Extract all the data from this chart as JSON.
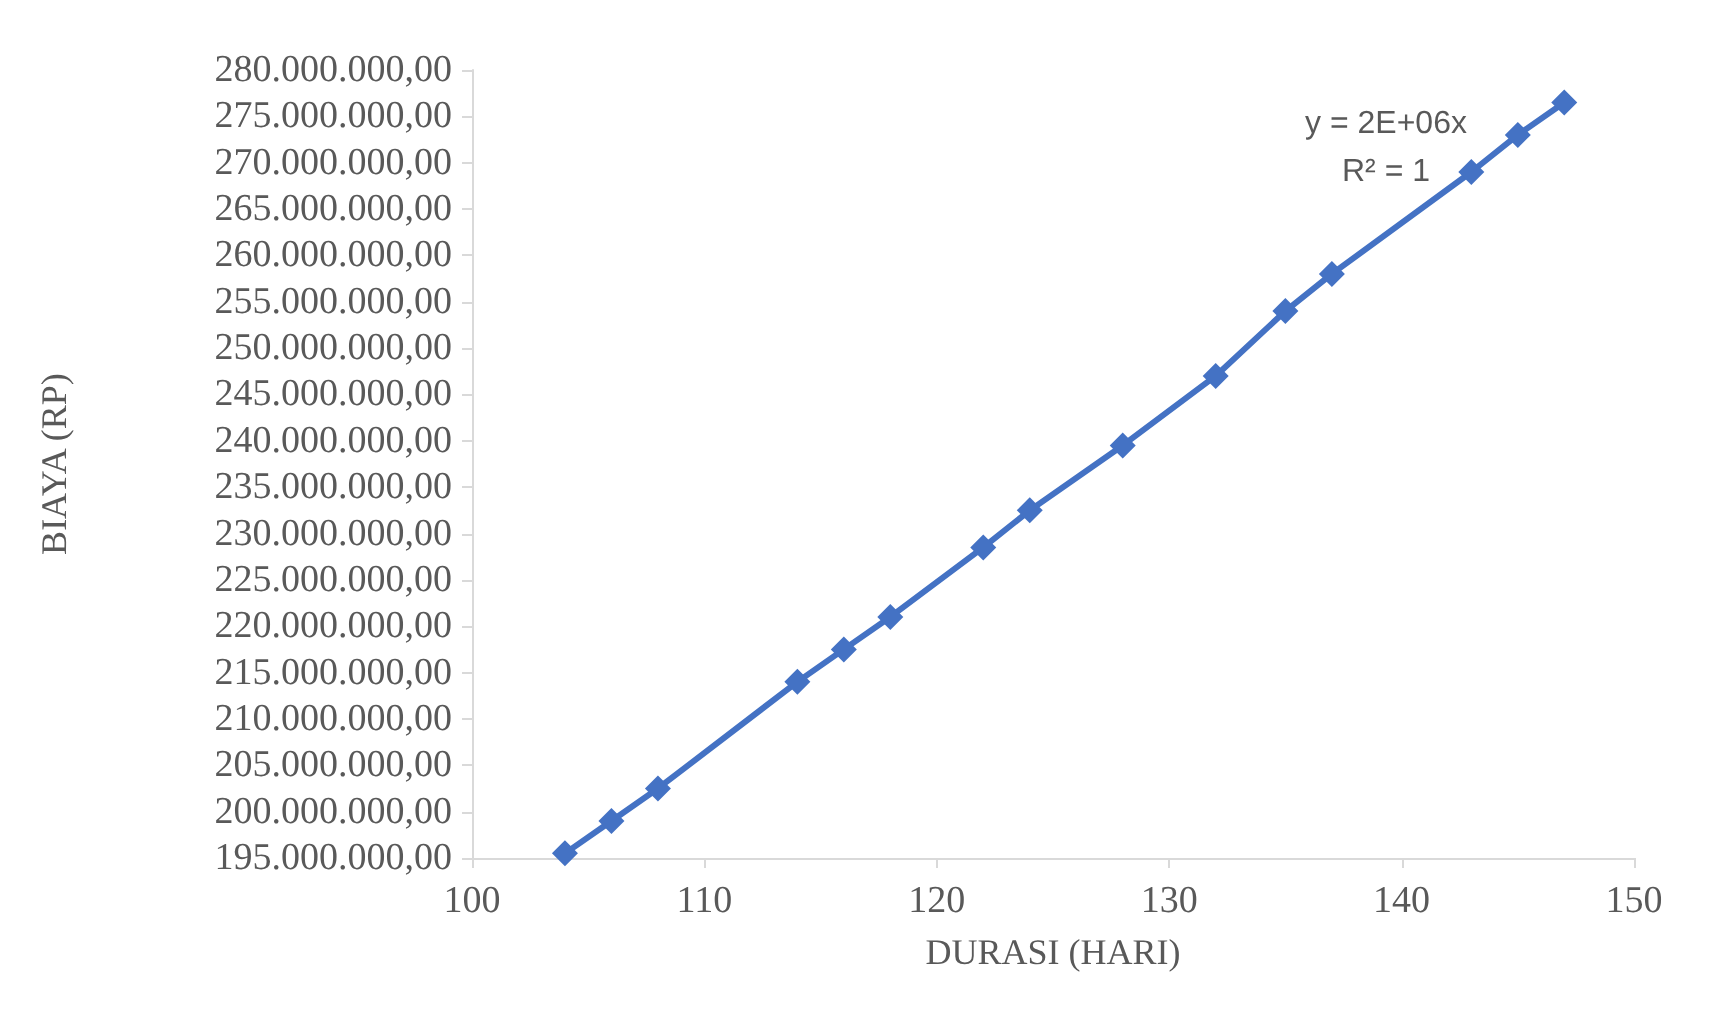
{
  "chart_data": {
    "type": "line",
    "xlabel": "DURASI (HARI)",
    "ylabel": "BIAYA (RP)",
    "annotations": [
      "y = 2E+06x",
      "R² = 1"
    ],
    "x": [
      104,
      106,
      108,
      114,
      116,
      118,
      122,
      124,
      128,
      132,
      135,
      137,
      143,
      145,
      147
    ],
    "series": [
      {
        "color": "#4472c4",
        "values": [
          195500000,
          199000000,
          202500000,
          214000000,
          217500000,
          221000000,
          228500000,
          232500000,
          239500000,
          247000000,
          254000000,
          258000000,
          269000000,
          273000000,
          276500000
        ]
      }
    ],
    "xlim": [
      100,
      150
    ],
    "xticks": [
      100,
      110,
      120,
      130,
      140,
      150
    ],
    "ylim": [
      195000000,
      280000000
    ],
    "yticks": [
      {
        "value": 195000000,
        "label": "195.000.000,00"
      },
      {
        "value": 200000000,
        "label": "200.000.000,00"
      },
      {
        "value": 205000000,
        "label": "205.000.000,00"
      },
      {
        "value": 210000000,
        "label": "210.000.000,00"
      },
      {
        "value": 215000000,
        "label": "215.000.000,00"
      },
      {
        "value": 220000000,
        "label": "220.000.000,00"
      },
      {
        "value": 225000000,
        "label": "225.000.000,00"
      },
      {
        "value": 230000000,
        "label": "230.000.000,00"
      },
      {
        "value": 235000000,
        "label": "235.000.000,00"
      },
      {
        "value": 240000000,
        "label": "240.000.000,00"
      },
      {
        "value": 245000000,
        "label": "245.000.000,00"
      },
      {
        "value": 250000000,
        "label": "250.000.000,00"
      },
      {
        "value": 255000000,
        "label": "255.000.000,00"
      },
      {
        "value": 260000000,
        "label": "260.000.000,00"
      },
      {
        "value": 265000000,
        "label": "265.000.000,00"
      },
      {
        "value": 270000000,
        "label": "270.000.000,00"
      },
      {
        "value": 275000000,
        "label": "275.000.000,00"
      },
      {
        "value": 280000000,
        "label": "280.000.000,00"
      }
    ],
    "grid": false,
    "marker": "diamond",
    "line_style": "solid"
  }
}
